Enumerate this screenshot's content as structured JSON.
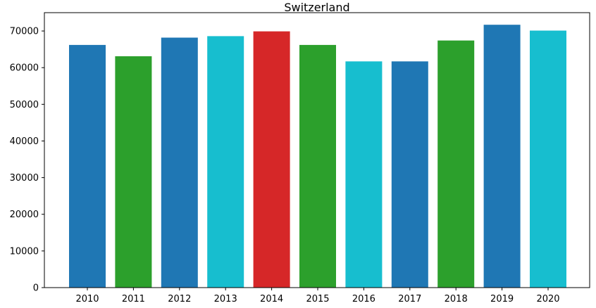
{
  "chart_data": {
    "type": "bar",
    "title": "Switzerland",
    "xlabel": "",
    "ylabel": "",
    "categories": [
      "2010",
      "2011",
      "2012",
      "2013",
      "2014",
      "2015",
      "2016",
      "2017",
      "2018",
      "2019",
      "2020"
    ],
    "values": [
      66200,
      63100,
      68200,
      68600,
      69900,
      66200,
      61700,
      61700,
      67400,
      71700,
      70100
    ],
    "bar_colors": [
      "#1f77b4",
      "#2ca02c",
      "#1f77b4",
      "#17becf",
      "#d62728",
      "#2ca02c",
      "#17becf",
      "#1f77b4",
      "#2ca02c",
      "#1f77b4",
      "#17becf"
    ],
    "ylim": [
      0,
      75000
    ],
    "yticks": [
      0,
      10000,
      20000,
      30000,
      40000,
      50000,
      60000,
      70000
    ],
    "grid": false,
    "legend": "none"
  }
}
